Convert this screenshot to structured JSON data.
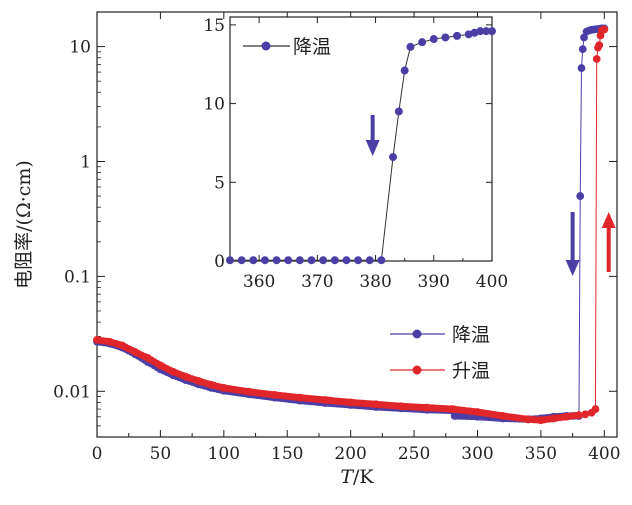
{
  "chart_data": [
    {
      "type": "line",
      "role": "main",
      "xlabel_italic": "T",
      "xlabel_rest": "/K",
      "ylabel": "电阻率/(Ω·cm)",
      "xlim": [
        0,
        410
      ],
      "ylim": [
        0.004,
        20
      ],
      "yscale": "log",
      "xticks": [
        0,
        50,
        100,
        150,
        200,
        250,
        300,
        350,
        400
      ],
      "yticks": [
        0.01,
        0.1,
        1,
        10
      ],
      "ytick_labels": [
        "0.01",
        "0.1",
        "1",
        "10"
      ],
      "legend_position": "lower-right",
      "series": [
        {
          "name": "降温",
          "color": "#4b3fa6",
          "x": [
            0,
            10,
            20,
            30,
            40,
            50,
            60,
            70,
            80,
            90,
            100,
            120,
            140,
            160,
            180,
            200,
            220,
            240,
            260,
            280,
            282,
            300,
            320,
            340,
            350,
            360,
            370,
            375,
            380,
            381,
            382,
            383,
            384,
            386,
            388,
            390,
            392,
            394,
            396,
            398,
            400
          ],
          "y": [
            0.027,
            0.026,
            0.024,
            0.021,
            0.018,
            0.0155,
            0.0138,
            0.0125,
            0.0115,
            0.0107,
            0.0101,
            0.0094,
            0.0088,
            0.0083,
            0.0079,
            0.0076,
            0.0073,
            0.0071,
            0.0069,
            0.0068,
            0.0061,
            0.006,
            0.0058,
            0.0057,
            0.0058,
            0.006,
            0.0061,
            0.0061,
            0.0061,
            0.5,
            6.5,
            9.5,
            12,
            13.5,
            13.8,
            14,
            14.1,
            14.2,
            14.3,
            14.4,
            14.4
          ]
        },
        {
          "name": "升温",
          "color": "#e0262a",
          "x": [
            0,
            10,
            20,
            30,
            40,
            50,
            60,
            70,
            80,
            90,
            100,
            120,
            140,
            160,
            180,
            200,
            220,
            240,
            260,
            280,
            300,
            320,
            340,
            350,
            360,
            370,
            380,
            385,
            390,
            393,
            394,
            395,
            396,
            397,
            398,
            399,
            400
          ],
          "y": [
            0.028,
            0.027,
            0.025,
            0.022,
            0.0195,
            0.0168,
            0.0148,
            0.0134,
            0.0123,
            0.0114,
            0.0107,
            0.0099,
            0.0093,
            0.0088,
            0.0084,
            0.008,
            0.0077,
            0.0074,
            0.0072,
            0.007,
            0.0066,
            0.0061,
            0.0057,
            0.0056,
            0.0058,
            0.006,
            0.0062,
            0.0063,
            0.0065,
            0.007,
            7.8,
            9.8,
            10.3,
            12.5,
            13.8,
            14.0,
            14.1
          ]
        }
      ],
      "arrows": [
        {
          "direction": "down",
          "color": "#4b3fa6"
        },
        {
          "direction": "up",
          "color": "#e0262a"
        }
      ]
    },
    {
      "type": "line",
      "role": "inset",
      "xlim": [
        355,
        400
      ],
      "ylim": [
        0,
        15.5
      ],
      "yscale": "linear",
      "xticks": [
        360,
        370,
        380,
        390,
        400
      ],
      "yticks": [
        0,
        5,
        10,
        15
      ],
      "legend_position": "top-left",
      "series": [
        {
          "name": "降温",
          "color": "#4b3fa6",
          "x": [
            355,
            357,
            359,
            361,
            363,
            365,
            367,
            369,
            371,
            373,
            375,
            377,
            379,
            381,
            383,
            384,
            385,
            386,
            388,
            390,
            392,
            394,
            396,
            397,
            398,
            399,
            400
          ],
          "y": [
            0.05,
            0.05,
            0.05,
            0.05,
            0.05,
            0.05,
            0.05,
            0.05,
            0.05,
            0.05,
            0.05,
            0.05,
            0.05,
            0.05,
            6.6,
            9.5,
            12.1,
            13.6,
            13.9,
            14.1,
            14.2,
            14.3,
            14.4,
            14.5,
            14.6,
            14.6,
            14.6
          ]
        }
      ],
      "arrows": [
        {
          "direction": "down",
          "color": "#4b3fa6"
        }
      ]
    }
  ]
}
